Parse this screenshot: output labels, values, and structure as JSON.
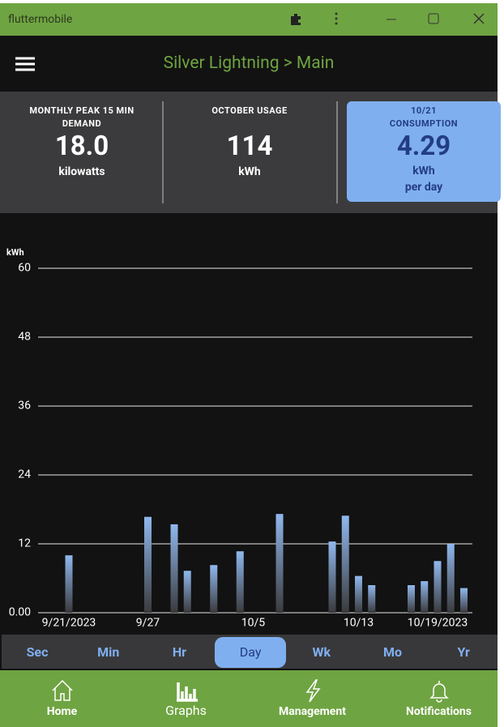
{
  "window": {
    "title": "fluttermobile"
  },
  "header": {
    "title": "Silver Lightning > Main"
  },
  "stats": [
    {
      "label": "MONTHLY PEAK 15 MIN DEMAND",
      "value": "18.0",
      "unit": "kilowatts"
    },
    {
      "label": "OCTOBER USAGE",
      "value": "114",
      "unit": "kWh"
    },
    {
      "date": "10/21",
      "label": "CONSUMPTION",
      "value": "4.29",
      "unit": "kWh",
      "note": "per day"
    }
  ],
  "chart_data": {
    "type": "bar",
    "y_label": "kWh",
    "categories": [
      "9/21/2023",
      null,
      null,
      null,
      null,
      null,
      "9/27",
      null,
      null,
      null,
      null,
      null,
      null,
      null,
      "10/5",
      null,
      null,
      null,
      null,
      null,
      null,
      null,
      "10/13",
      null,
      null,
      null,
      null,
      null,
      "10/19/2023",
      null,
      null
    ],
    "values": [
      10.0,
      null,
      null,
      null,
      null,
      null,
      16.7,
      null,
      15.4,
      7.3,
      null,
      8.3,
      null,
      10.7,
      null,
      null,
      17.2,
      null,
      null,
      null,
      12.4,
      16.9,
      6.4,
      4.8,
      null,
      null,
      4.8,
      5.5,
      9.0,
      12.0,
      4.29
    ],
    "color": "#90b8ee",
    "ylim": [
      0,
      60
    ],
    "yticks": [
      {
        "value": 0,
        "label": "0.00"
      },
      12,
      24,
      36,
      48,
      60
    ],
    "grid": true
  },
  "tabs": {
    "items": [
      "Sec",
      "Min",
      "Hr",
      "Day",
      "Wk",
      "Mo",
      "Yr"
    ],
    "selected_index": 3
  },
  "nav": [
    "Home",
    "Graphs",
    "Management",
    "Notifications"
  ]
}
